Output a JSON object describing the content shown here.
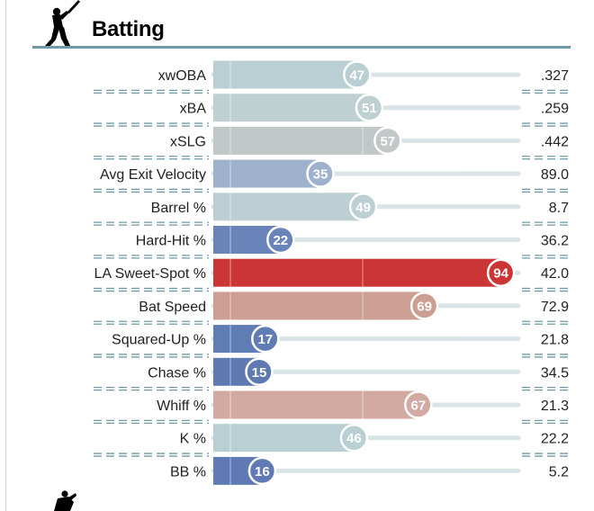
{
  "section": {
    "title": "Batting",
    "batter_icon": "batter-silhouette-icon",
    "pitcher_icon": "pitcher-silhouette-icon"
  },
  "colors": {
    "header_rule": "#6f9aa5",
    "track": "#d9e4e6",
    "separator": "#6f9aa5",
    "bar_palette": {
      "15": "#5f79b3",
      "16": "#5f7ab4",
      "17": "#607cb5",
      "22": "#6a84ba",
      "35": "#9eb1cd",
      "46": "#b9cfd3",
      "47": "#b9cfd3",
      "49": "#bccfd2",
      "51": "#bfd0d2",
      "57": "#c2c7c7",
      "67": "#d3aaa2",
      "69": "#cd9e94",
      "94": "#cc3535"
    }
  },
  "chart_data": {
    "type": "bar",
    "orientation": "horizontal",
    "title": "Batting",
    "xlim": [
      0,
      100
    ],
    "categories": [
      "xwOBA",
      "xBA",
      "xSLG",
      "Avg Exit Velocity",
      "Barrel %",
      "Hard-Hit %",
      "LA Sweet-Spot %",
      "Bat Speed",
      "Squared-Up %",
      "Chase %",
      "Whiff %",
      "K %",
      "BB %"
    ],
    "percentiles": [
      47,
      51,
      57,
      35,
      49,
      22,
      94,
      69,
      17,
      15,
      67,
      46,
      16
    ],
    "values": [
      ".327",
      ".259",
      ".442",
      "89.0",
      "8.7",
      "36.2",
      "42.0",
      "72.9",
      "21.8",
      "34.5",
      "21.3",
      "22.2",
      "5.2"
    ],
    "percentile_labels": [
      "47",
      "51",
      "57",
      "35",
      "49",
      "22",
      "94",
      "69",
      "17",
      "15",
      "67",
      "46",
      "16"
    ]
  }
}
